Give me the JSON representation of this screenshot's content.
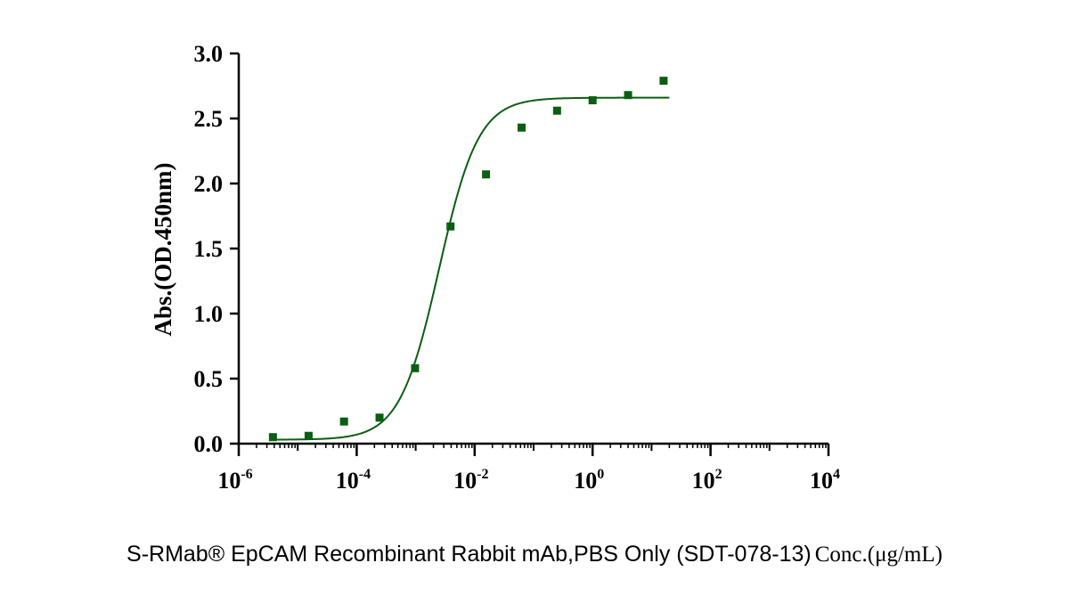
{
  "colors": {
    "series": "#0b5e12",
    "axis": "#000000"
  },
  "chart_data": {
    "type": "scatter",
    "x_scale": "log",
    "xlim": [
      1e-06,
      10000
    ],
    "ylim": [
      0,
      3
    ],
    "x_ticks": [
      {
        "base": "10",
        "exp": "-6"
      },
      {
        "base": "10",
        "exp": "-4"
      },
      {
        "base": "10",
        "exp": "-2"
      },
      {
        "base": "10",
        "exp": "0"
      },
      {
        "base": "10",
        "exp": "2"
      },
      {
        "base": "10",
        "exp": "4"
      }
    ],
    "y_ticks": [
      "0.0",
      "0.5",
      "1.0",
      "1.5",
      "2.0",
      "2.5",
      "3.0"
    ],
    "ylabel": "Abs.(OD.450nm)",
    "xlabel_main": "S-RMab® EpCAM Recombinant Rabbit mAb,PBS Only (SDT-078-13)",
    "xlabel_unit": "Conc.(μg/mL)",
    "grid": false,
    "series": [
      {
        "marker": "square",
        "points": [
          {
            "x": 3.8e-06,
            "y": 0.05
          },
          {
            "x": 1.53e-05,
            "y": 0.06
          },
          {
            "x": 6.1e-05,
            "y": 0.17
          },
          {
            "x": 0.000244,
            "y": 0.2
          },
          {
            "x": 0.000977,
            "y": 0.58
          },
          {
            "x": 0.0039,
            "y": 1.67
          },
          {
            "x": 0.0156,
            "y": 2.07
          },
          {
            "x": 0.0625,
            "y": 2.43
          },
          {
            "x": 0.25,
            "y": 2.56
          },
          {
            "x": 1,
            "y": 2.64
          },
          {
            "x": 4,
            "y": 2.68
          },
          {
            "x": 16,
            "y": 2.79
          }
        ],
        "fit": {
          "model": "4PL",
          "bottom": 0.03,
          "top": 2.66,
          "ec50": 0.0025,
          "hill": 1.3,
          "x_start": 3.8e-06,
          "x_end": 20
        }
      }
    ]
  }
}
